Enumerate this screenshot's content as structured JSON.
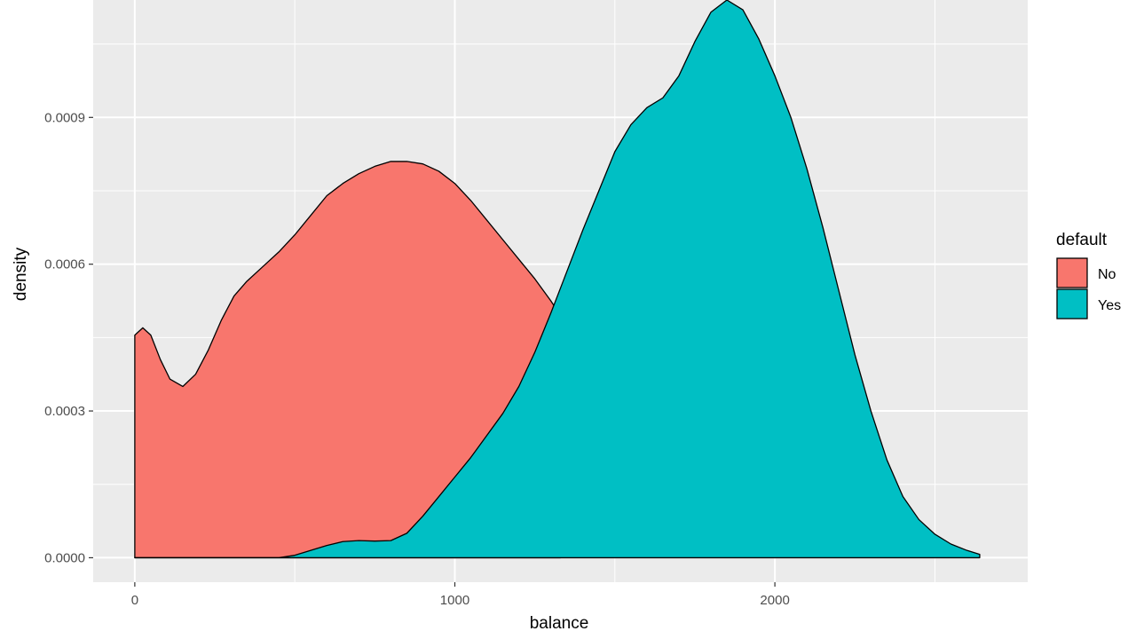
{
  "chart_data": {
    "type": "area",
    "subtype": "density",
    "xlabel": "balance",
    "ylabel": "density",
    "xlim": [
      -130,
      2790
    ],
    "ylim": [
      -5e-05,
      0.00114
    ],
    "x_ticks": [
      0,
      1000,
      2000
    ],
    "x_tick_labels": [
      "0",
      "1000",
      "2000"
    ],
    "y_ticks": [
      0,
      0.0003,
      0.0006,
      0.0009
    ],
    "y_tick_labels": [
      "0.0000",
      "0.0003",
      "0.0006",
      "0.0009"
    ],
    "grid": true,
    "legend": {
      "title": "default",
      "position": "right"
    },
    "series": [
      {
        "name": "No",
        "color": "#F8766D",
        "x": [
          0,
          25,
          50,
          80,
          110,
          150,
          190,
          230,
          270,
          310,
          350,
          400,
          450,
          500,
          550,
          600,
          650,
          700,
          750,
          800,
          850,
          900,
          950,
          1000,
          1050,
          1100,
          1150,
          1200,
          1250,
          1300,
          1330
        ],
        "y": [
          0.000455,
          0.00047,
          0.000455,
          0.000405,
          0.000365,
          0.00035,
          0.000375,
          0.000425,
          0.000485,
          0.000535,
          0.000565,
          0.000595,
          0.000625,
          0.00066,
          0.0007,
          0.00074,
          0.000765,
          0.000785,
          0.0008,
          0.00081,
          0.00081,
          0.000805,
          0.00079,
          0.000765,
          0.00073,
          0.00069,
          0.00065,
          0.00061,
          0.00057,
          0.000525,
          0.000495
        ]
      },
      {
        "name": "Yes",
        "color": "#00BFC4",
        "x": [
          0,
          200,
          450,
          500,
          550,
          600,
          650,
          700,
          750,
          800,
          850,
          900,
          950,
          1000,
          1050,
          1100,
          1150,
          1200,
          1250,
          1300,
          1350,
          1400,
          1450,
          1500,
          1550,
          1600,
          1650,
          1700,
          1750,
          1800,
          1850,
          1900,
          1950,
          2000,
          2050,
          2100,
          2150,
          2200,
          2250,
          2300,
          2350,
          2400,
          2450,
          2500,
          2550,
          2600,
          2640
        ],
        "y": [
          0,
          0,
          0,
          5e-06,
          1.5e-05,
          2.5e-05,
          3.3e-05,
          3.5e-05,
          3.4e-05,
          3.5e-05,
          5e-05,
          8.5e-05,
          0.000125,
          0.000165,
          0.000205,
          0.00025,
          0.000295,
          0.00035,
          0.00042,
          0.0005,
          0.000585,
          0.00067,
          0.00075,
          0.00083,
          0.000885,
          0.00092,
          0.00094,
          0.000985,
          0.001055,
          0.001115,
          0.00114,
          0.00112,
          0.00106,
          0.000985,
          0.0009,
          0.000795,
          0.000675,
          0.000545,
          0.000415,
          0.0003,
          0.0002,
          0.000125,
          7.8e-05,
          4.8e-05,
          2.8e-05,
          1.5e-05,
          7e-06
        ]
      }
    ]
  }
}
